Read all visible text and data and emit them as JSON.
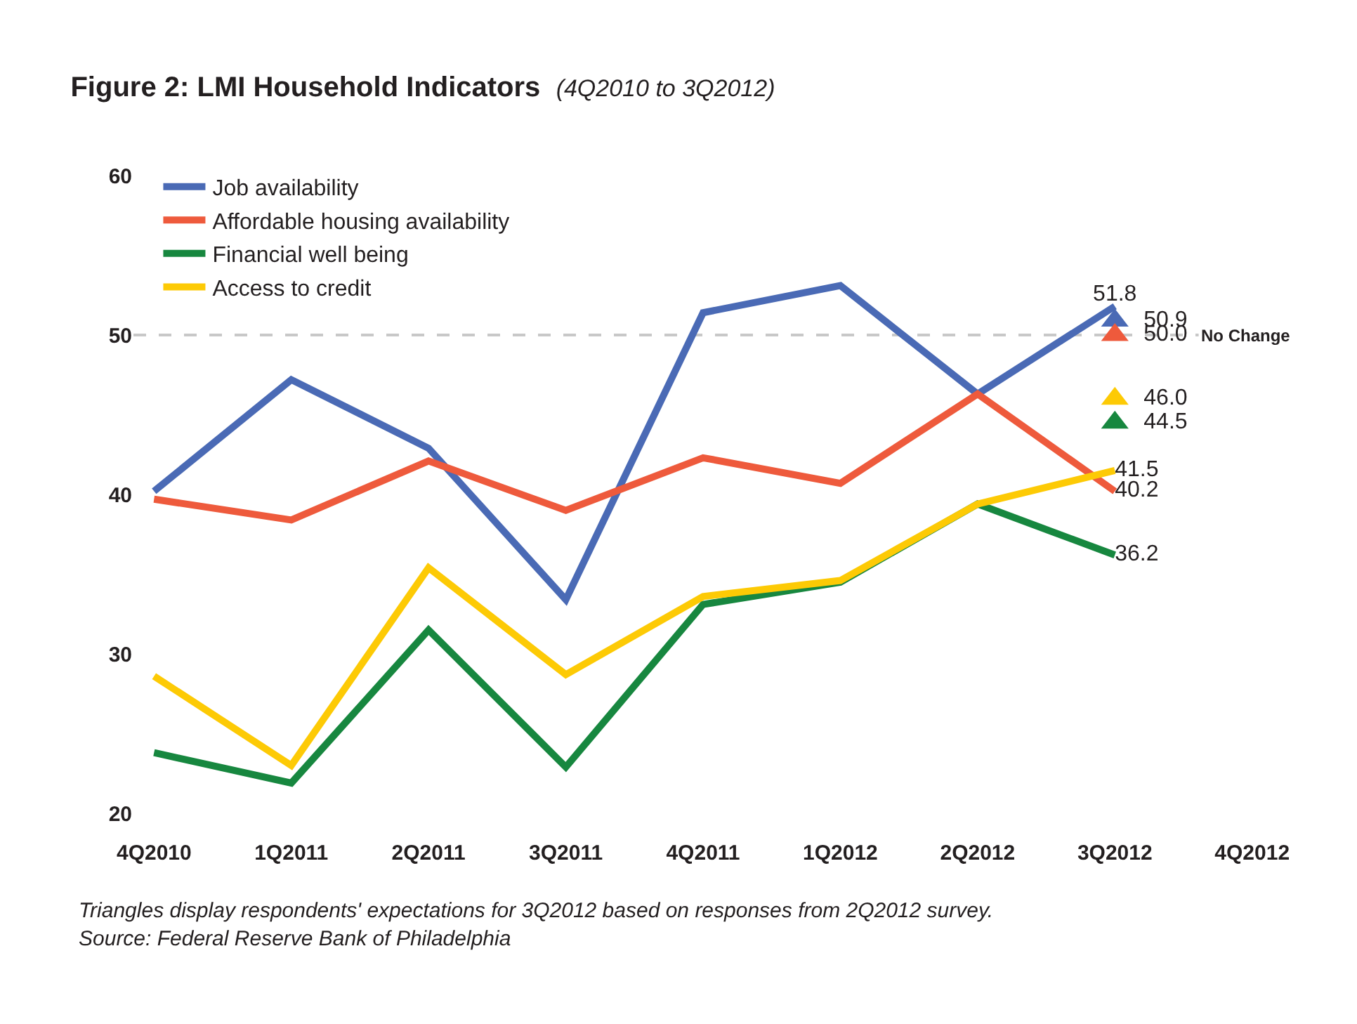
{
  "chart_data": {
    "type": "line",
    "title": "Figure 2: LMI Household Indicators",
    "subtitle": "(4Q2010 to 3Q2012)",
    "categories": [
      "4Q2010",
      "1Q2011",
      "2Q2011",
      "3Q2011",
      "4Q2011",
      "1Q2012",
      "2Q2012",
      "3Q2012",
      "4Q2012"
    ],
    "series": [
      {
        "name": "Job availability",
        "color": "#4a6ab5",
        "values": [
          40.2,
          47.2,
          42.9,
          33.4,
          51.4,
          53.1,
          46.3,
          51.8,
          null
        ],
        "value_labels": [
          null,
          null,
          null,
          null,
          null,
          null,
          null,
          "51.8",
          null
        ]
      },
      {
        "name": "Affordable housing availability",
        "color": "#ee5a3c",
        "values": [
          39.7,
          38.4,
          42.1,
          39.0,
          42.3,
          40.7,
          46.3,
          40.2,
          null
        ],
        "value_labels": [
          null,
          null,
          null,
          null,
          null,
          null,
          null,
          "40.2",
          null
        ]
      },
      {
        "name": "Financial well being",
        "color": "#17873f",
        "values": [
          23.8,
          21.9,
          31.5,
          22.9,
          33.1,
          34.5,
          39.4,
          36.2,
          null
        ],
        "value_labels": [
          null,
          null,
          null,
          null,
          null,
          null,
          null,
          "36.2",
          null
        ]
      },
      {
        "name": "Access to credit",
        "color": "#fdca05",
        "values": [
          28.6,
          23.0,
          35.4,
          28.7,
          33.6,
          34.6,
          39.4,
          41.5,
          null
        ],
        "value_labels": [
          null,
          null,
          null,
          null,
          null,
          null,
          null,
          "41.5",
          null
        ]
      },
      {
        "type": "scatter",
        "marker": "triangle",
        "color": "#4a6ab5",
        "values": [
          null,
          null,
          null,
          null,
          null,
          null,
          null,
          50.9,
          null
        ],
        "value_labels": [
          null,
          null,
          null,
          null,
          null,
          null,
          null,
          "50.9",
          null
        ]
      },
      {
        "type": "scatter",
        "marker": "triangle",
        "color": "#ee5a3c",
        "values": [
          null,
          null,
          null,
          null,
          null,
          null,
          null,
          50.0,
          null
        ],
        "value_labels": [
          null,
          null,
          null,
          null,
          null,
          null,
          null,
          "50.0",
          null
        ]
      },
      {
        "type": "scatter",
        "marker": "triangle",
        "color": "#fdca05",
        "values": [
          null,
          null,
          null,
          null,
          null,
          null,
          null,
          46.0,
          null
        ],
        "value_labels": [
          null,
          null,
          null,
          null,
          null,
          null,
          null,
          "46.0",
          null
        ]
      },
      {
        "type": "scatter",
        "marker": "triangle",
        "color": "#17873f",
        "values": [
          null,
          null,
          null,
          null,
          null,
          null,
          null,
          44.5,
          null
        ],
        "value_labels": [
          null,
          null,
          null,
          null,
          null,
          null,
          null,
          "44.5",
          null
        ]
      }
    ],
    "ylim": [
      20,
      60
    ],
    "yticks": [
      20,
      30,
      40,
      50,
      60
    ],
    "grid": false,
    "legend": "top left",
    "marker": "none",
    "ref_lines": [
      {
        "axis": "y",
        "value": 50,
        "label": "No Change",
        "color": "#c8c8c8",
        "line_style": "dashed"
      }
    ],
    "annotations": [
      "Triangles display respondents' expectations for 3Q2012 based on responses from 2Q2012 survey.",
      "Source: Federal Reserve Bank of Philadelphia"
    ]
  }
}
